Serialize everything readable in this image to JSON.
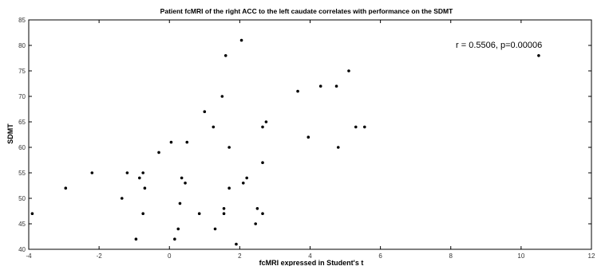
{
  "chart_data": {
    "type": "scatter",
    "title": "Patient fcMRI of the right ACC to the left caudate correlates with performance on the SDMT",
    "xlabel": "fcMRI expressed in Student's t",
    "ylabel": "SDMT",
    "xlim": [
      -4,
      12
    ],
    "ylim": [
      40,
      85
    ],
    "xticks": [
      -4,
      -2,
      0,
      2,
      4,
      6,
      8,
      10,
      12
    ],
    "yticks": [
      40,
      45,
      50,
      55,
      60,
      65,
      70,
      75,
      80,
      85
    ],
    "grid": false,
    "annotation": "r = 0.5506, p=0.00006",
    "series": [
      {
        "marker_color": "#000000",
        "points": [
          [
            -3.9,
            47
          ],
          [
            -2.95,
            52
          ],
          [
            -2.2,
            55
          ],
          [
            -1.35,
            50
          ],
          [
            -1.2,
            55
          ],
          [
            -0.95,
            42
          ],
          [
            -0.85,
            54
          ],
          [
            -0.75,
            55
          ],
          [
            -0.7,
            52
          ],
          [
            -0.75,
            47
          ],
          [
            -0.3,
            59
          ],
          [
            0.05,
            61
          ],
          [
            0.15,
            42
          ],
          [
            0.25,
            44
          ],
          [
            0.3,
            49
          ],
          [
            0.35,
            54
          ],
          [
            0.45,
            53
          ],
          [
            0.5,
            61
          ],
          [
            0.85,
            47
          ],
          [
            1.0,
            67
          ],
          [
            1.25,
            64
          ],
          [
            1.3,
            44
          ],
          [
            1.5,
            70
          ],
          [
            1.55,
            47
          ],
          [
            1.55,
            48
          ],
          [
            1.6,
            78
          ],
          [
            1.7,
            60
          ],
          [
            1.7,
            52
          ],
          [
            1.9,
            41
          ],
          [
            2.05,
            81
          ],
          [
            2.1,
            53
          ],
          [
            2.2,
            54
          ],
          [
            2.45,
            45
          ],
          [
            2.5,
            48
          ],
          [
            2.65,
            47
          ],
          [
            2.65,
            57
          ],
          [
            2.65,
            64
          ],
          [
            2.75,
            65
          ],
          [
            3.65,
            71
          ],
          [
            3.95,
            62
          ],
          [
            4.3,
            72
          ],
          [
            4.75,
            72
          ],
          [
            4.8,
            60
          ],
          [
            5.1,
            75
          ],
          [
            5.3,
            64
          ],
          [
            5.55,
            64
          ],
          [
            10.5,
            78
          ]
        ]
      }
    ]
  }
}
